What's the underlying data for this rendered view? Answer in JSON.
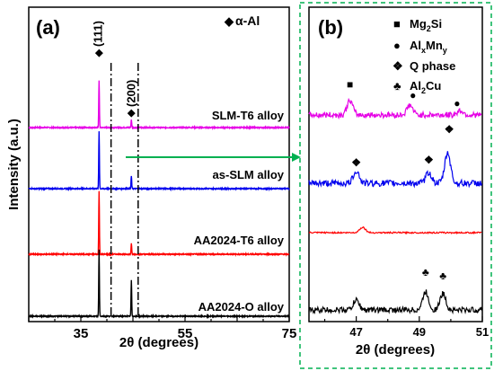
{
  "chart_data": [
    {
      "panel": "(a)",
      "type": "line",
      "xlabel": "2θ (degrees)",
      "ylabel": "Intensity (a.u.)",
      "xlim": [
        25,
        75
      ],
      "xticks": [
        "35",
        "55",
        "75"
      ],
      "grid": false,
      "legend": "top-right",
      "legend_entries": [
        {
          "marker": "◆",
          "label": "α-Al"
        }
      ],
      "peak_labels": [
        {
          "label": "(111)",
          "x": 38.5
        },
        {
          "label": "(200)",
          "x": 44.7
        }
      ],
      "dashdot_lines_x": [
        40.8,
        46.0
      ],
      "series": [
        {
          "name": "SLM-T6 alloy",
          "color": "#e600e6",
          "peaks": [
            {
              "x": 38.5,
              "height": 52
            },
            {
              "x": 44.7,
              "height": 9
            }
          ]
        },
        {
          "name": "as-SLM alloy",
          "color": "#0000ee",
          "peaks": [
            {
              "x": 38.5,
              "height": 64
            },
            {
              "x": 44.7,
              "height": 14
            }
          ]
        },
        {
          "name": "AA2024-T6 alloy",
          "color": "#ff0000",
          "peaks": [
            {
              "x": 38.5,
              "height": 70
            },
            {
              "x": 44.7,
              "height": 12
            }
          ]
        },
        {
          "name": "AA2024-O alloy",
          "color": "#000000",
          "peaks": [
            {
              "x": 38.5,
              "height": 74
            },
            {
              "x": 44.7,
              "height": 40
            }
          ]
        }
      ]
    },
    {
      "panel": "(b)",
      "type": "line",
      "xlabel": "2θ (degrees)",
      "xlim": [
        45.5,
        51
      ],
      "xticks": [
        "47",
        "49",
        "51"
      ],
      "grid": false,
      "legend": "top-right",
      "legend_entries": [
        {
          "marker": "■",
          "label": "Mg",
          "sub": "2",
          "tail": "Si"
        },
        {
          "marker": "●",
          "label": "Al",
          "sub": "x",
          "mid": "Mn",
          "sub2": "y"
        },
        {
          "marker": "❖",
          "label": "Q phase"
        },
        {
          "marker": "♣",
          "label": "Al",
          "sub": "2",
          "tail": "Cu"
        }
      ],
      "series": [
        {
          "name": "SLM-T6 alloy",
          "color": "#e600e6",
          "peaks": [
            {
              "x": 46.8,
              "height": 16
            },
            {
              "x": 48.7,
              "height": 11
            },
            {
              "x": 50.3,
              "height": 5
            }
          ],
          "markers": [
            {
              "symbol": "■",
              "x": 46.8
            },
            {
              "symbol": "●",
              "x": 48.8
            },
            {
              "symbol": "●",
              "x": 50.2
            }
          ]
        },
        {
          "name": "as-SLM alloy",
          "color": "#0000ee",
          "peaks": [
            {
              "x": 47.0,
              "height": 14
            },
            {
              "x": 49.3,
              "height": 12
            },
            {
              "x": 49.9,
              "height": 34
            }
          ],
          "markers": [
            {
              "symbol": "❖",
              "x": 47.0
            },
            {
              "symbol": "❖",
              "x": 49.3
            },
            {
              "symbol": "❖",
              "x": 49.95
            }
          ]
        },
        {
          "name": "AA2024-T6 alloy",
          "color": "#ff0000",
          "peaks": [
            {
              "x": 47.2,
              "height": 6
            }
          ],
          "markers": []
        },
        {
          "name": "AA2024-O alloy",
          "color": "#000000",
          "peaks": [
            {
              "x": 47.0,
              "height": 11
            },
            {
              "x": 49.2,
              "height": 20
            },
            {
              "x": 49.75,
              "height": 18
            }
          ],
          "markers": [
            {
              "symbol": "♣",
              "x": 49.2
            },
            {
              "symbol": "♣",
              "x": 49.75
            }
          ]
        }
      ]
    }
  ],
  "arrow_color": "#00b050",
  "box_color": "#00b050"
}
